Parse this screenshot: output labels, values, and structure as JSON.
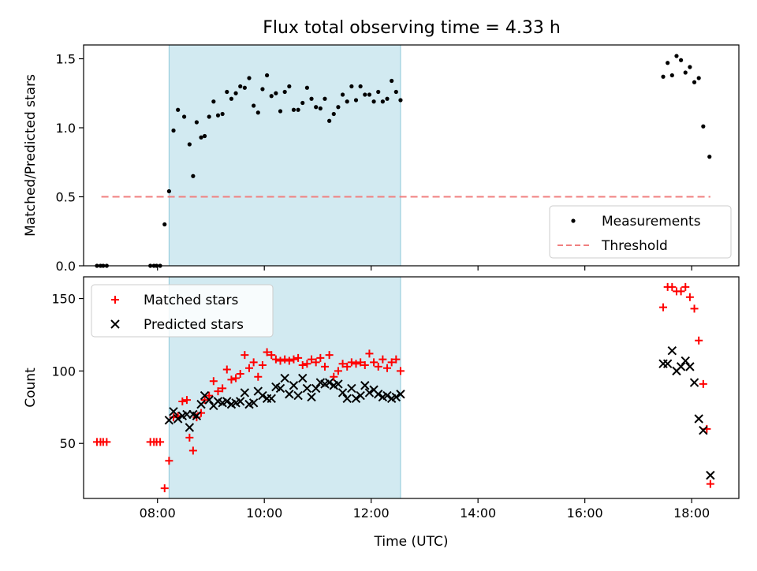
{
  "figure": {
    "title": "Flux total observing time = 4.33 h"
  },
  "chart_data": [
    {
      "type": "scatter",
      "ylabel": "Matched/Predicted stars",
      "xlim": [
        "06:37",
        "18:53"
      ],
      "ylim": [
        0,
        1.6
      ],
      "yticks": [
        "0.0",
        "0.5",
        "1.0",
        "1.5"
      ],
      "xticks": [
        "08:00",
        "10:00",
        "12:00",
        "14:00",
        "16:00",
        "18:00"
      ],
      "highlight": {
        "from": "08:13",
        "to": "12:33",
        "color": "#add8e6"
      },
      "threshold": {
        "name": "Threshold",
        "value": 0.5,
        "from": "06:57",
        "to": "18:21",
        "color": "#f08080"
      },
      "legend": {
        "position": "lower-right",
        "entries": [
          "Measurements",
          "Threshold"
        ]
      },
      "series": [
        {
          "name": "Measurements",
          "marker": "dot",
          "color": "#000000",
          "points": [
            [
              "06:52",
              0
            ],
            [
              "06:56",
              0
            ],
            [
              "06:59",
              0
            ],
            [
              "07:03",
              0
            ],
            [
              "07:52",
              0
            ],
            [
              "07:56",
              0
            ],
            [
              "07:59",
              0
            ],
            [
              "08:03",
              0
            ],
            [
              "08:08",
              0.3
            ],
            [
              "08:13",
              0.54
            ],
            [
              "08:18",
              0.98
            ],
            [
              "08:23",
              1.13
            ],
            [
              "08:30",
              1.08
            ],
            [
              "08:36",
              0.88
            ],
            [
              "08:40",
              0.65
            ],
            [
              "08:44",
              1.04
            ],
            [
              "08:49",
              0.93
            ],
            [
              "08:53",
              0.94
            ],
            [
              "08:58",
              1.08
            ],
            [
              "09:03",
              1.19
            ],
            [
              "09:08",
              1.09
            ],
            [
              "09:13",
              1.1
            ],
            [
              "09:18",
              1.26
            ],
            [
              "09:23",
              1.21
            ],
            [
              "09:28",
              1.25
            ],
            [
              "09:33",
              1.3
            ],
            [
              "09:38",
              1.29
            ],
            [
              "09:43",
              1.36
            ],
            [
              "09:48",
              1.16
            ],
            [
              "09:53",
              1.11
            ],
            [
              "09:58",
              1.28
            ],
            [
              "10:03",
              1.38
            ],
            [
              "10:08",
              1.23
            ],
            [
              "10:13",
              1.25
            ],
            [
              "10:18",
              1.12
            ],
            [
              "10:23",
              1.26
            ],
            [
              "10:28",
              1.3
            ],
            [
              "10:33",
              1.13
            ],
            [
              "10:38",
              1.13
            ],
            [
              "10:43",
              1.18
            ],
            [
              "10:48",
              1.29
            ],
            [
              "10:53",
              1.21
            ],
            [
              "10:58",
              1.15
            ],
            [
              "11:03",
              1.14
            ],
            [
              "11:08",
              1.21
            ],
            [
              "11:13",
              1.05
            ],
            [
              "11:18",
              1.1
            ],
            [
              "11:23",
              1.15
            ],
            [
              "11:28",
              1.24
            ],
            [
              "11:33",
              1.19
            ],
            [
              "11:38",
              1.3
            ],
            [
              "11:43",
              1.2
            ],
            [
              "11:48",
              1.3
            ],
            [
              "11:53",
              1.24
            ],
            [
              "11:58",
              1.24
            ],
            [
              "12:03",
              1.19
            ],
            [
              "12:08",
              1.26
            ],
            [
              "12:13",
              1.19
            ],
            [
              "12:18",
              1.21
            ],
            [
              "12:23",
              1.34
            ],
            [
              "12:28",
              1.26
            ],
            [
              "12:33",
              1.2
            ],
            [
              "17:28",
              1.37
            ],
            [
              "17:33",
              1.47
            ],
            [
              "17:38",
              1.38
            ],
            [
              "17:43",
              1.52
            ],
            [
              "17:48",
              1.49
            ],
            [
              "17:53",
              1.4
            ],
            [
              "17:58",
              1.44
            ],
            [
              "18:03",
              1.33
            ],
            [
              "18:08",
              1.36
            ],
            [
              "18:13",
              1.01
            ],
            [
              "18:20",
              0.79
            ]
          ]
        }
      ]
    },
    {
      "type": "scatter",
      "xlabel": "Time (UTC)",
      "ylabel": "Count",
      "xlim": [
        "06:37",
        "18:53"
      ],
      "ylim": [
        12,
        165
      ],
      "yticks": [
        "50",
        "100",
        "150"
      ],
      "xticks": [
        "08:00",
        "10:00",
        "12:00",
        "14:00",
        "16:00",
        "18:00"
      ],
      "highlight": {
        "from": "08:13",
        "to": "12:33",
        "color": "#add8e6"
      },
      "legend": {
        "position": "upper-left",
        "entries": [
          "Matched stars",
          "Predicted stars"
        ]
      },
      "series": [
        {
          "name": "Matched stars",
          "marker": "plus",
          "color": "#ff0000",
          "points": [
            [
              "06:52",
              51
            ],
            [
              "06:56",
              51
            ],
            [
              "06:59",
              51
            ],
            [
              "07:03",
              51
            ],
            [
              "07:52",
              51
            ],
            [
              "07:56",
              51
            ],
            [
              "07:59",
              51
            ],
            [
              "08:03",
              51
            ],
            [
              "08:08",
              19
            ],
            [
              "08:13",
              38
            ],
            [
              "08:18",
              68
            ],
            [
              "08:23",
              69
            ],
            [
              "08:28",
              79
            ],
            [
              "08:33",
              80
            ],
            [
              "08:36",
              54
            ],
            [
              "08:40",
              45
            ],
            [
              "08:44",
              68
            ],
            [
              "08:49",
              71
            ],
            [
              "08:53",
              80
            ],
            [
              "08:58",
              83
            ],
            [
              "09:03",
              93
            ],
            [
              "09:08",
              86
            ],
            [
              "09:13",
              88
            ],
            [
              "09:18",
              101
            ],
            [
              "09:23",
              94
            ],
            [
              "09:28",
              95
            ],
            [
              "09:33",
              98
            ],
            [
              "09:38",
              111
            ],
            [
              "09:43",
              102
            ],
            [
              "09:48",
              106
            ],
            [
              "09:53",
              96
            ],
            [
              "09:58",
              104
            ],
            [
              "10:03",
              113
            ],
            [
              "10:08",
              111
            ],
            [
              "10:13",
              108
            ],
            [
              "10:18",
              107
            ],
            [
              "10:23",
              108
            ],
            [
              "10:28",
              107
            ],
            [
              "10:33",
              108
            ],
            [
              "10:38",
              109
            ],
            [
              "10:43",
              104
            ],
            [
              "10:48",
              105
            ],
            [
              "10:53",
              108
            ],
            [
              "10:58",
              106
            ],
            [
              "11:03",
              109
            ],
            [
              "11:08",
              103
            ],
            [
              "11:13",
              111
            ],
            [
              "11:18",
              96
            ],
            [
              "11:23",
              100
            ],
            [
              "11:28",
              105
            ],
            [
              "11:33",
              103
            ],
            [
              "11:38",
              106
            ],
            [
              "11:43",
              105
            ],
            [
              "11:48",
              106
            ],
            [
              "11:53",
              104
            ],
            [
              "11:58",
              112
            ],
            [
              "12:03",
              106
            ],
            [
              "12:08",
              103
            ],
            [
              "12:13",
              108
            ],
            [
              "12:18",
              102
            ],
            [
              "12:23",
              106
            ],
            [
              "12:28",
              108
            ],
            [
              "12:33",
              100
            ],
            [
              "17:28",
              144
            ],
            [
              "17:33",
              158
            ],
            [
              "17:38",
              158
            ],
            [
              "17:43",
              155
            ],
            [
              "17:48",
              155
            ],
            [
              "17:53",
              158
            ],
            [
              "17:58",
              151
            ],
            [
              "18:03",
              143
            ],
            [
              "18:08",
              121
            ],
            [
              "18:13",
              91
            ],
            [
              "18:17",
              60
            ],
            [
              "18:21",
              22
            ]
          ]
        },
        {
          "name": "Predicted stars",
          "marker": "x",
          "color": "#000000",
          "points": [
            [
              "08:13",
              66
            ],
            [
              "08:18",
              72
            ],
            [
              "08:23",
              67
            ],
            [
              "08:28",
              69
            ],
            [
              "08:33",
              70
            ],
            [
              "08:36",
              61
            ],
            [
              "08:40",
              70
            ],
            [
              "08:44",
              69
            ],
            [
              "08:49",
              77
            ],
            [
              "08:53",
              83
            ],
            [
              "08:58",
              80
            ],
            [
              "09:03",
              76
            ],
            [
              "09:08",
              79
            ],
            [
              "09:13",
              78
            ],
            [
              "09:18",
              79
            ],
            [
              "09:23",
              77
            ],
            [
              "09:28",
              78
            ],
            [
              "09:33",
              79
            ],
            [
              "09:38",
              85
            ],
            [
              "09:43",
              77
            ],
            [
              "09:48",
              78
            ],
            [
              "09:53",
              86
            ],
            [
              "09:58",
              83
            ],
            [
              "10:03",
              81
            ],
            [
              "10:08",
              81
            ],
            [
              "10:13",
              89
            ],
            [
              "10:18",
              88
            ],
            [
              "10:23",
              95
            ],
            [
              "10:28",
              84
            ],
            [
              "10:33",
              90
            ],
            [
              "10:38",
              83
            ],
            [
              "10:43",
              95
            ],
            [
              "10:48",
              88
            ],
            [
              "10:53",
              82
            ],
            [
              "10:58",
              88
            ],
            [
              "11:03",
              92
            ],
            [
              "11:08",
              91
            ],
            [
              "11:13",
              92
            ],
            [
              "11:18",
              90
            ],
            [
              "11:23",
              91
            ],
            [
              "11:28",
              85
            ],
            [
              "11:33",
              81
            ],
            [
              "11:38",
              88
            ],
            [
              "11:43",
              81
            ],
            [
              "11:48",
              83
            ],
            [
              "11:53",
              90
            ],
            [
              "11:58",
              85
            ],
            [
              "12:03",
              87
            ],
            [
              "12:08",
              84
            ],
            [
              "12:13",
              82
            ],
            [
              "12:18",
              83
            ],
            [
              "12:23",
              81
            ],
            [
              "12:28",
              82
            ],
            [
              "12:33",
              84
            ],
            [
              "17:28",
              105
            ],
            [
              "17:33",
              105
            ],
            [
              "17:38",
              114
            ],
            [
              "17:43",
              100
            ],
            [
              "17:48",
              103
            ],
            [
              "17:53",
              107
            ],
            [
              "17:58",
              103
            ],
            [
              "18:03",
              92
            ],
            [
              "18:08",
              67
            ],
            [
              "18:13",
              59
            ],
            [
              "18:21",
              28
            ]
          ]
        }
      ]
    }
  ]
}
